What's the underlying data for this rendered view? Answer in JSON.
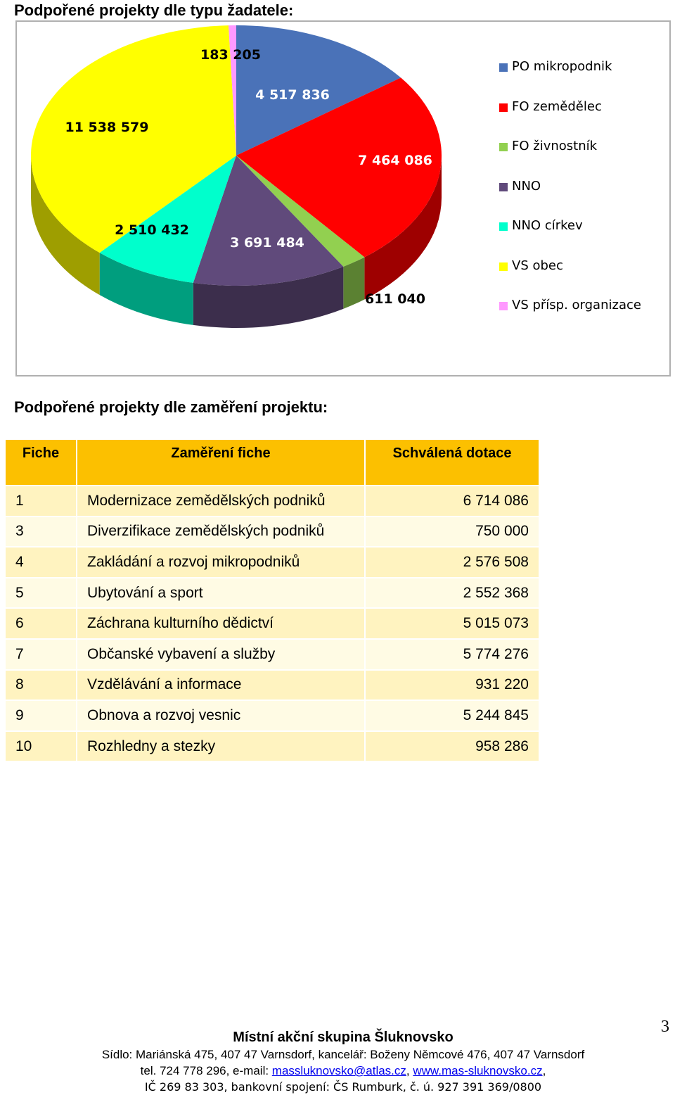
{
  "headings": {
    "applicant_type": "Podpořené projekty dle typu žadatele:",
    "project_focus": "Podpořené projekty dle zaměření projektu:"
  },
  "chart_data": {
    "type": "pie",
    "categories": [
      "PO mikropodnik",
      "FO zemědělec",
      "FO živnostník",
      "NNO",
      "NNO církev",
      "VS obec",
      "VS přísp. organizace"
    ],
    "values": [
      4517836,
      7464086,
      611040,
      3691484,
      2510432,
      11538579,
      183205
    ],
    "value_labels": [
      "4 517 836",
      "7 464 086",
      "611 040",
      "3 691 484",
      "2 510 432",
      "11 538 579",
      "183 205"
    ],
    "colors": [
      "#4a72b8",
      "#ff0000",
      "#92d050",
      "#604a7b",
      "#00ffcc",
      "#ffff00",
      "#ff99ff"
    ],
    "style": "3d",
    "legend": "right"
  },
  "table": {
    "headers": [
      "Fiche",
      "Zaměření fiche",
      "Schválená dotace"
    ],
    "rows": [
      [
        "1",
        "Modernizace zemědělských podniků",
        "6 714 086"
      ],
      [
        "3",
        "Diverzifikace zemědělských podniků",
        "750 000"
      ],
      [
        "4",
        "Zakládání a rozvoj mikropodniků",
        "2 576 508"
      ],
      [
        "5",
        "Ubytování a sport",
        "2 552 368"
      ],
      [
        "6",
        "Záchrana kulturního dědictví",
        "5 015 073"
      ],
      [
        "7",
        "Občanské vybavení a služby",
        "5 774 276"
      ],
      [
        "8",
        "Vzdělávání a informace",
        "931 220"
      ],
      [
        "9",
        "Obnova a rozvoj vesnic",
        "5 244 845"
      ],
      [
        "10",
        "Rozhledny a stezky",
        "958 286"
      ]
    ]
  },
  "page_number": "3",
  "footer": {
    "org": "Místní akční skupina Šluknovsko",
    "address": "Sídlo: Mariánská 475, 407 47 Varnsdorf, kancelář: Boženy Němcové 476, 407 47 Varnsdorf",
    "tel_prefix": "tel. 724 778 296, e-mail: ",
    "email": "massluknovsko@atlas.cz",
    "sep": ", ",
    "web": "www.mas-sluknovsko.cz",
    "web_suffix": ",",
    "bank": "IČ 269 83 303, bankovní spojení: ČS Rumburk, č. ú. 927 391 369/0800"
  }
}
